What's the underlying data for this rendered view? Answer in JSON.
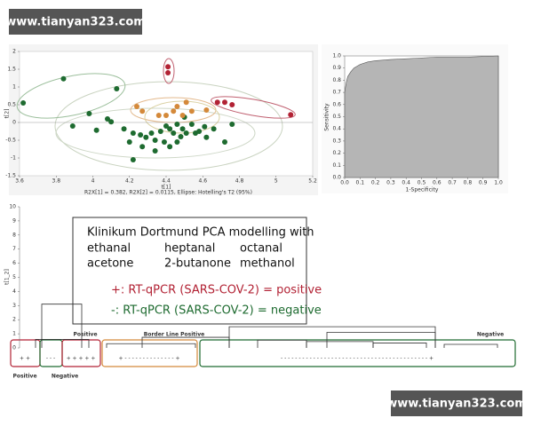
{
  "watermarks": [
    "www.tianyan323.com",
    "www.tianyan323.com"
  ],
  "chart_data": [
    {
      "type": "scatter",
      "x_label": "t[1]",
      "y_label": "t[2]",
      "footnote": "R2X[1] = 0.382, R2X[2] = 0.0115, Ellipse: Hotelling's T2 (95%)",
      "xlim": [
        3.6,
        5.2
      ],
      "xticks": [
        3.6,
        3.8,
        4,
        4.2,
        4.4,
        4.6,
        4.8,
        5,
        5.2
      ],
      "ylim": [
        -1.5,
        2
      ],
      "yticks": [
        -1.5,
        -1,
        -0.5,
        0,
        0.5,
        1,
        1.5,
        2
      ],
      "series": [
        {
          "color": "#1e6b30",
          "x": [
            3.84,
            4.13,
            3.62,
            3.98,
            4.08,
            4.1,
            3.89,
            4.02,
            4.17,
            4.22,
            4.26,
            4.29,
            4.32,
            4.34,
            4.37,
            4.39,
            4.42,
            4.44,
            4.46,
            4.49,
            4.51,
            4.54,
            4.56,
            4.58,
            4.61,
            4.66,
            4.76,
            4.27,
            4.42,
            4.34,
            4.2,
            4.46,
            4.5,
            4.62,
            4.72,
            4.22,
            4.48,
            4.4
          ],
          "y": [
            1.23,
            0.95,
            0.55,
            0.25,
            0.1,
            0.02,
            -0.1,
            -0.22,
            -0.18,
            -0.3,
            -0.35,
            -0.42,
            -0.3,
            -0.5,
            -0.25,
            -0.55,
            -0.18,
            -0.3,
            -0.05,
            -0.18,
            -0.3,
            -0.05,
            -0.3,
            -0.25,
            -0.12,
            -0.18,
            -0.05,
            -0.68,
            -0.68,
            -0.8,
            -0.55,
            -0.55,
            0.15,
            -0.42,
            -0.55,
            -1.05,
            -0.4,
            -0.1
          ]
        },
        {
          "color": "#d4893a",
          "x": [
            4.24,
            4.27,
            4.36,
            4.4,
            4.44,
            4.46,
            4.51,
            4.54,
            4.62,
            4.49
          ],
          "y": [
            0.45,
            0.32,
            0.2,
            0.2,
            0.32,
            0.45,
            0.57,
            0.32,
            0.35,
            0.2
          ]
        },
        {
          "color": "#b22234",
          "x": [
            4.41,
            4.41,
            4.68,
            4.72,
            4.76,
            5.08
          ],
          "y": [
            1.57,
            1.4,
            0.57,
            0.57,
            0.5,
            0.22
          ]
        }
      ]
    },
    {
      "type": "area",
      "x_label": "1-Specificity",
      "y_label": "Sensitivity",
      "xlim": [
        0,
        1
      ],
      "ylim": [
        0,
        1
      ],
      "xticks": [
        {
          "value": 0,
          "label": "0.0"
        },
        0.1,
        0.2,
        0.3,
        0.4,
        0.5,
        0.6,
        0.7,
        0.8,
        0.9,
        {
          "value": 1,
          "label": "1.0"
        }
      ],
      "yticks": [
        {
          "value": 0,
          "label": "0.0"
        },
        0.1,
        0.2,
        0.3,
        0.4,
        0.5,
        0.6,
        0.7,
        0.8,
        0.9,
        {
          "value": 1,
          "label": "1.0"
        }
      ],
      "color": "#b5b5b5",
      "x": [
        0,
        0,
        0.01,
        0.02,
        0.04,
        0.06,
        0.1,
        0.15,
        0.2,
        0.3,
        0.45,
        0.6,
        0.8,
        1
      ],
      "y": [
        0,
        0.7,
        0.78,
        0.83,
        0.87,
        0.9,
        0.93,
        0.95,
        0.96,
        0.97,
        0.98,
        0.99,
        0.99,
        1
      ]
    },
    {
      "type": "dendrogram",
      "y_label": "t[1_2]",
      "ylim": [
        0,
        10
      ],
      "yticks": [
        0,
        1,
        2,
        3,
        4,
        5,
        6,
        7,
        8,
        9,
        10
      ],
      "merge_heights": [
        3.1,
        1.5,
        1.1,
        0.75,
        0.55,
        0.45,
        0.35,
        0.6,
        0.3,
        0.25
      ],
      "group_labels": [
        "Positive",
        "Border Line Positive",
        "Negative",
        "Positive",
        "Negative"
      ],
      "leaf_marks": [
        "+ +",
        "- - -",
        "+ + + + +",
        "+  - - - - - - - - - - - - - -  +",
        "- - - - - - - - - - - - - - - - - - - - - - - - - - - - - - - - - - - - - - - - -   +"
      ],
      "note_lines": [
        "Klinikum Dortmund PCA modelling with",
        "ethanal",
        "heptanal",
        "octanal",
        "acetone",
        "2-butanone",
        "methanol",
        "+: RT-qPCR (SARS-COV-2) = positive",
        "-: RT-qPCR (SARS-COV-2) = negative"
      ]
    }
  ]
}
